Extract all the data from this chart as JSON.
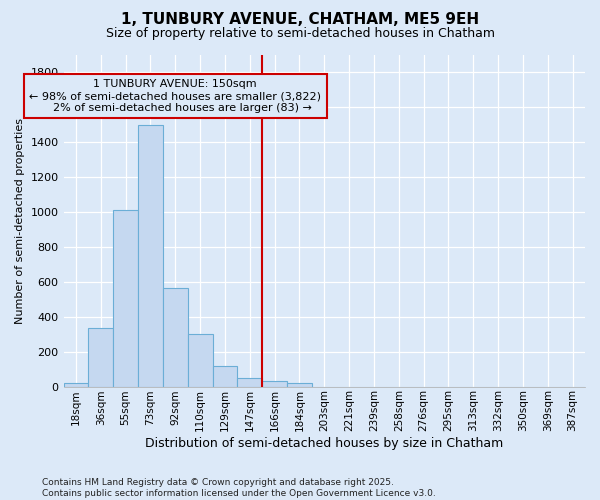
{
  "title1": "1, TUNBURY AVENUE, CHATHAM, ME5 9EH",
  "title2": "Size of property relative to semi-detached houses in Chatham",
  "xlabel": "Distribution of semi-detached houses by size in Chatham",
  "ylabel": "Number of semi-detached properties",
  "bar_labels": [
    "18sqm",
    "36sqm",
    "55sqm",
    "73sqm",
    "92sqm",
    "110sqm",
    "129sqm",
    "147sqm",
    "166sqm",
    "184sqm",
    "203sqm",
    "221sqm",
    "239sqm",
    "258sqm",
    "276sqm",
    "295sqm",
    "313sqm",
    "332sqm",
    "350sqm",
    "369sqm",
    "387sqm"
  ],
  "bar_values": [
    20,
    335,
    1010,
    1500,
    565,
    300,
    120,
    50,
    30,
    20,
    0,
    0,
    0,
    0,
    0,
    0,
    0,
    0,
    0,
    0,
    0
  ],
  "bar_color": "#c5d8f0",
  "bar_edge_color": "#6baed6",
  "property_line_label": "1 TUNBURY AVENUE: 150sqm",
  "pct_smaller": 98,
  "n_smaller": 3822,
  "pct_larger": 2,
  "n_larger": 83,
  "vline_color": "#cc0000",
  "annotation_box_edge": "#cc0000",
  "background_color": "#dce9f8",
  "grid_color": "#ffffff",
  "footnote1": "Contains HM Land Registry data © Crown copyright and database right 2025.",
  "footnote2": "Contains public sector information licensed under the Open Government Licence v3.0.",
  "ylim": [
    0,
    1900
  ],
  "yticks": [
    0,
    200,
    400,
    600,
    800,
    1000,
    1200,
    1400,
    1600,
    1800
  ]
}
